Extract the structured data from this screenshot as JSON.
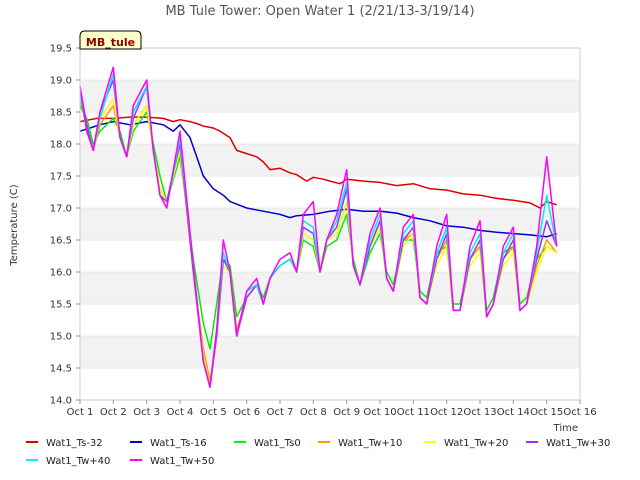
{
  "chart_data": {
    "type": "line",
    "title": "MB Tule Tower: Open Water 1 (2/21/13-3/19/14)",
    "xlabel": "Time",
    "ylabel": "Temperature (C)",
    "site_label": "MB_tule",
    "xlim": [
      1,
      16
    ],
    "ylim": [
      14.0,
      19.5
    ],
    "x_ticks": [
      1,
      2,
      3,
      4,
      5,
      6,
      7,
      8,
      9,
      10,
      11,
      12,
      13,
      14,
      15,
      16
    ],
    "x_tick_labels": [
      "Oct 1",
      "Oct 2",
      "Oct 3",
      "Oct 4",
      "Oct 5",
      "Oct 6",
      "Oct 7",
      "Oct 8",
      "Oct 9",
      "Oct 10",
      "Oct 11",
      "Oct 12",
      "Oct 13",
      "Oct 14",
      "Oct 15",
      "Oct 16"
    ],
    "y_ticks": [
      14.0,
      14.5,
      15.0,
      15.5,
      16.0,
      16.5,
      17.0,
      17.5,
      18.0,
      18.5,
      19.0,
      19.5
    ],
    "y_tick_labels": [
      "14.0",
      "14.5",
      "15.0",
      "15.5",
      "16.0",
      "16.5",
      "17.0",
      "17.5",
      "18.0",
      "18.5",
      "19.0",
      "19.5"
    ],
    "grid": "horizontal bands",
    "legend_position": "bottom",
    "series": [
      {
        "name": "Wat1_Ts-32",
        "color": "#dd0000",
        "x": [
          1.0,
          1.5,
          2.0,
          2.5,
          3.0,
          3.5,
          3.8,
          4.0,
          4.3,
          4.5,
          4.7,
          5.0,
          5.2,
          5.5,
          5.7,
          6.0,
          6.3,
          6.5,
          6.7,
          7.0,
          7.3,
          7.5,
          7.8,
          8.0,
          8.3,
          8.5,
          8.8,
          9.0,
          9.5,
          10.0,
          10.5,
          11.0,
          11.5,
          12.0,
          12.5,
          13.0,
          13.5,
          14.0,
          14.5,
          14.8,
          15.0,
          15.3
        ],
        "y": [
          18.35,
          18.4,
          18.4,
          18.42,
          18.42,
          18.4,
          18.35,
          18.38,
          18.35,
          18.32,
          18.28,
          18.25,
          18.2,
          18.1,
          17.9,
          17.85,
          17.8,
          17.72,
          17.6,
          17.62,
          17.55,
          17.52,
          17.42,
          17.48,
          17.45,
          17.42,
          17.38,
          17.45,
          17.42,
          17.4,
          17.35,
          17.38,
          17.3,
          17.28,
          17.22,
          17.2,
          17.15,
          17.12,
          17.08,
          17.0,
          17.1,
          17.05
        ]
      },
      {
        "name": "Wat1_Ts-16",
        "color": "#0000cc",
        "x": [
          1.0,
          1.3,
          1.6,
          2.0,
          2.5,
          3.0,
          3.5,
          3.8,
          4.0,
          4.3,
          4.5,
          4.7,
          5.0,
          5.3,
          5.5,
          6.0,
          6.5,
          7.0,
          7.3,
          7.5,
          8.0,
          8.5,
          9.0,
          9.5,
          10.0,
          10.5,
          11.0,
          11.5,
          12.0,
          12.5,
          13.0,
          13.5,
          14.0,
          14.5,
          15.0,
          15.3
        ],
        "y": [
          18.2,
          18.25,
          18.3,
          18.35,
          18.3,
          18.35,
          18.3,
          18.2,
          18.3,
          18.1,
          17.8,
          17.5,
          17.3,
          17.2,
          17.1,
          17.0,
          16.95,
          16.9,
          16.85,
          16.88,
          16.9,
          16.95,
          16.98,
          16.95,
          16.95,
          16.92,
          16.85,
          16.8,
          16.72,
          16.7,
          16.65,
          16.62,
          16.6,
          16.58,
          16.55,
          16.6
        ]
      },
      {
        "name": "Wat1_Ts0",
        "color": "#00ee00",
        "x": [
          1.0,
          1.2,
          1.4,
          1.6,
          2.0,
          2.2,
          2.4,
          2.6,
          3.0,
          3.2,
          3.4,
          3.6,
          4.0,
          4.4,
          4.7,
          4.9,
          5.1,
          5.3,
          5.5,
          5.7,
          6.0,
          6.3,
          6.5,
          6.7,
          7.0,
          7.3,
          7.5,
          7.7,
          8.0,
          8.2,
          8.4,
          8.7,
          9.0,
          9.2,
          9.4,
          9.7,
          10.0,
          10.2,
          10.4,
          10.7,
          11.0,
          11.2,
          11.4,
          11.7,
          12.0,
          12.2,
          12.4,
          12.7,
          13.0,
          13.2,
          13.4,
          13.7,
          14.0,
          14.2,
          14.4,
          14.7,
          15.0,
          15.3
        ],
        "y": [
          18.6,
          18.4,
          18.0,
          18.2,
          18.4,
          18.2,
          17.8,
          18.2,
          18.5,
          18.0,
          17.5,
          17.1,
          17.8,
          16.2,
          15.2,
          14.8,
          15.5,
          16.2,
          16.1,
          15.3,
          15.6,
          15.8,
          15.6,
          15.9,
          16.1,
          16.2,
          16.0,
          16.5,
          16.4,
          16.0,
          16.4,
          16.5,
          16.9,
          16.2,
          15.8,
          16.3,
          16.6,
          16.0,
          15.8,
          16.5,
          16.5,
          15.7,
          15.6,
          16.3,
          16.4,
          15.5,
          15.5,
          16.2,
          16.4,
          15.4,
          15.6,
          16.3,
          16.4,
          15.5,
          15.6,
          16.2,
          16.4,
          16.3
        ]
      },
      {
        "name": "Wat1_Tw+10",
        "color": "#ff9900",
        "x": [
          1.0,
          1.2,
          1.4,
          1.6,
          2.0,
          2.2,
          2.4,
          2.6,
          3.0,
          3.2,
          3.4,
          3.6,
          4.0,
          4.4,
          4.7,
          4.9,
          5.1,
          5.3,
          5.5,
          5.7,
          6.0,
          6.3,
          6.5,
          6.7,
          7.0,
          7.3,
          7.5,
          7.7,
          8.0,
          8.2,
          8.4,
          8.7,
          9.0,
          9.2,
          9.4,
          9.7,
          10.0,
          10.2,
          10.4,
          10.7,
          11.0,
          11.2,
          11.4,
          11.7,
          12.0,
          12.2,
          12.4,
          12.7,
          13.0,
          13.2,
          13.4,
          13.7,
          14.0,
          14.2,
          14.4,
          14.7,
          15.0,
          15.3
        ],
        "y": [
          18.7,
          18.3,
          17.9,
          18.3,
          18.6,
          18.1,
          17.8,
          18.3,
          18.6,
          17.9,
          17.3,
          17.1,
          17.9,
          16.0,
          14.8,
          14.3,
          15.0,
          16.1,
          16.0,
          15.1,
          15.6,
          15.8,
          15.5,
          15.9,
          16.1,
          16.2,
          16.0,
          16.6,
          16.5,
          16.0,
          16.5,
          16.6,
          17.1,
          16.1,
          15.8,
          16.4,
          16.7,
          15.9,
          15.7,
          16.5,
          16.6,
          15.6,
          15.5,
          16.2,
          16.5,
          15.4,
          15.4,
          16.2,
          16.4,
          15.3,
          15.5,
          16.2,
          16.4,
          15.4,
          15.5,
          16.1,
          16.5,
          16.3
        ]
      },
      {
        "name": "Wat1_Tw+20",
        "color": "#ffff00",
        "x": [
          1.0,
          1.2,
          1.4,
          1.6,
          2.0,
          2.2,
          2.4,
          2.6,
          3.0,
          3.2,
          3.4,
          3.6,
          4.0,
          4.4,
          4.7,
          4.9,
          5.1,
          5.3,
          5.5,
          5.7,
          6.0,
          6.3,
          6.5,
          6.7,
          7.0,
          7.3,
          7.5,
          7.7,
          8.0,
          8.2,
          8.4,
          8.7,
          9.0,
          9.2,
          9.4,
          9.7,
          10.0,
          10.2,
          10.4,
          10.7,
          11.0,
          11.2,
          11.4,
          11.7,
          12.0,
          12.2,
          12.4,
          12.7,
          13.0,
          13.2,
          13.4,
          13.7,
          14.0,
          14.2,
          14.4,
          14.7,
          15.0,
          15.3
        ],
        "y": [
          18.8,
          18.3,
          17.9,
          18.4,
          18.7,
          18.1,
          17.8,
          18.3,
          18.6,
          17.9,
          17.3,
          17.1,
          17.9,
          16.0,
          14.7,
          14.2,
          15.0,
          16.1,
          16.0,
          15.0,
          15.6,
          15.8,
          15.5,
          15.9,
          16.1,
          16.2,
          16.0,
          16.6,
          16.5,
          16.0,
          16.5,
          16.6,
          17.1,
          16.1,
          15.8,
          16.4,
          16.7,
          15.9,
          15.7,
          16.4,
          16.6,
          15.6,
          15.5,
          16.1,
          16.4,
          15.4,
          15.4,
          16.1,
          16.3,
          15.3,
          15.5,
          16.1,
          16.3,
          15.4,
          15.5,
          16.0,
          16.4,
          16.3
        ]
      },
      {
        "name": "Wat1_Tw+30",
        "color": "#9933ff",
        "x": [
          1.0,
          1.2,
          1.4,
          1.6,
          2.0,
          2.2,
          2.4,
          2.6,
          3.0,
          3.2,
          3.4,
          3.6,
          4.0,
          4.4,
          4.7,
          4.9,
          5.1,
          5.3,
          5.5,
          5.7,
          6.0,
          6.3,
          6.5,
          6.7,
          7.0,
          7.3,
          7.5,
          7.7,
          8.0,
          8.2,
          8.4,
          8.7,
          9.0,
          9.2,
          9.4,
          9.7,
          10.0,
          10.2,
          10.4,
          10.7,
          11.0,
          11.2,
          11.4,
          11.7,
          12.0,
          12.2,
          12.4,
          12.7,
          13.0,
          13.2,
          13.4,
          13.7,
          14.0,
          14.2,
          14.4,
          14.7,
          15.0,
          15.3
        ],
        "y": [
          18.9,
          18.3,
          17.9,
          18.5,
          19.0,
          18.1,
          17.8,
          18.4,
          18.9,
          17.9,
          17.2,
          17.1,
          18.0,
          16.0,
          14.6,
          14.2,
          15.0,
          16.2,
          16.0,
          15.0,
          15.6,
          15.8,
          15.5,
          15.9,
          16.1,
          16.2,
          16.0,
          16.7,
          16.6,
          16.0,
          16.5,
          16.7,
          17.3,
          16.1,
          15.8,
          16.4,
          16.8,
          15.9,
          15.7,
          16.5,
          16.7,
          15.6,
          15.5,
          16.2,
          16.6,
          15.4,
          15.4,
          16.2,
          16.5,
          15.3,
          15.5,
          16.2,
          16.5,
          15.4,
          15.5,
          16.2,
          16.8,
          16.4
        ]
      },
      {
        "name": "Wat1_Tw+40",
        "color": "#00eeee",
        "x": [
          1.0,
          1.2,
          1.4,
          1.6,
          2.0,
          2.2,
          2.4,
          2.6,
          3.0,
          3.2,
          3.4,
          3.6,
          4.0,
          4.4,
          4.7,
          4.9,
          5.1,
          5.3,
          5.5,
          5.7,
          6.0,
          6.3,
          6.5,
          6.7,
          7.0,
          7.3,
          7.5,
          7.7,
          8.0,
          8.2,
          8.4,
          8.7,
          9.0,
          9.2,
          9.4,
          9.7,
          10.0,
          10.2,
          10.4,
          10.7,
          11.0,
          11.2,
          11.4,
          11.7,
          12.0,
          12.2,
          12.4,
          12.7,
          13.0,
          13.2,
          13.4,
          13.7,
          14.0,
          14.2,
          14.4,
          14.7,
          15.0,
          15.3
        ],
        "y": [
          18.8,
          18.2,
          17.9,
          18.4,
          19.1,
          18.1,
          17.8,
          18.5,
          18.9,
          17.9,
          17.2,
          17.0,
          18.1,
          16.1,
          14.6,
          14.2,
          15.1,
          16.3,
          16.0,
          15.0,
          15.7,
          15.8,
          15.5,
          15.9,
          16.1,
          16.2,
          16.0,
          16.8,
          16.7,
          16.0,
          16.5,
          16.8,
          17.4,
          16.1,
          15.8,
          16.5,
          16.9,
          15.9,
          15.7,
          16.6,
          16.8,
          15.6,
          15.5,
          16.3,
          16.7,
          15.4,
          15.4,
          16.3,
          16.6,
          15.3,
          15.5,
          16.3,
          16.6,
          15.4,
          15.5,
          16.3,
          17.2,
          16.4
        ]
      },
      {
        "name": "Wat1_Tw+50",
        "color": "#ff00ff",
        "x": [
          1.0,
          1.2,
          1.4,
          1.6,
          2.0,
          2.2,
          2.4,
          2.6,
          3.0,
          3.2,
          3.4,
          3.6,
          4.0,
          4.4,
          4.7,
          4.9,
          5.1,
          5.3,
          5.5,
          5.7,
          6.0,
          6.3,
          6.5,
          6.7,
          7.0,
          7.3,
          7.5,
          7.7,
          8.0,
          8.2,
          8.4,
          8.7,
          9.0,
          9.2,
          9.4,
          9.7,
          10.0,
          10.2,
          10.4,
          10.7,
          11.0,
          11.2,
          11.4,
          11.7,
          12.0,
          12.2,
          12.4,
          12.7,
          13.0,
          13.2,
          13.4,
          13.7,
          14.0,
          14.2,
          14.4,
          14.7,
          15.0,
          15.3
        ],
        "y": [
          18.9,
          18.2,
          17.9,
          18.5,
          19.2,
          18.1,
          17.8,
          18.6,
          19.0,
          17.9,
          17.2,
          17.0,
          18.2,
          16.1,
          14.6,
          14.2,
          15.1,
          16.5,
          16.0,
          15.0,
          15.7,
          15.9,
          15.5,
          15.9,
          16.2,
          16.3,
          16.0,
          16.9,
          17.1,
          16.0,
          16.5,
          16.9,
          17.6,
          16.1,
          15.8,
          16.6,
          17.0,
          15.9,
          15.7,
          16.7,
          16.9,
          15.6,
          15.5,
          16.4,
          16.9,
          15.4,
          15.4,
          16.4,
          16.8,
          15.3,
          15.5,
          16.4,
          16.7,
          15.4,
          15.5,
          16.4,
          17.8,
          16.4
        ]
      }
    ]
  }
}
